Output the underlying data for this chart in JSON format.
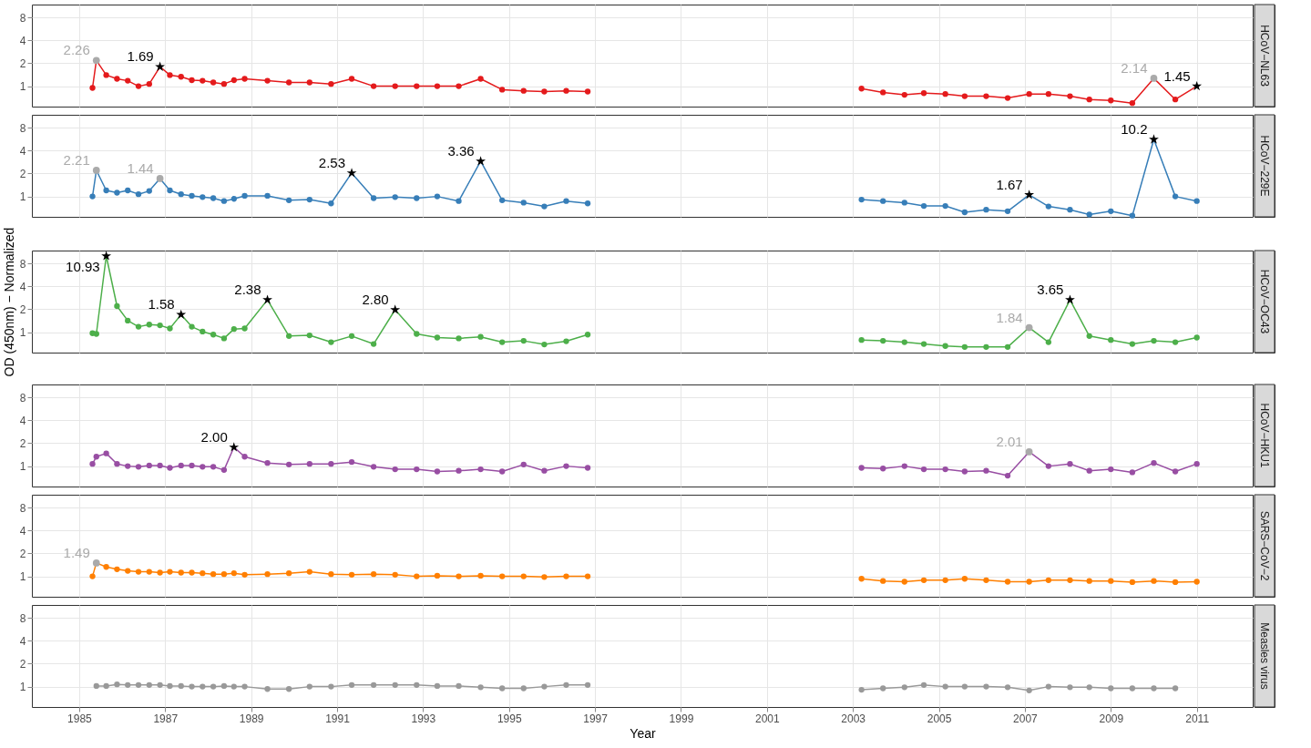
{
  "chart_data": [
    {
      "type": "line",
      "title": "HCoV−NL63",
      "log": "y",
      "grid": true,
      "tick_labels": "y",
      "marker": "circle",
      "line_style": "solid",
      "xlim": [
        1983.9,
        2012.3
      ],
      "xticks": [
        1985,
        1987,
        1989,
        1991,
        1993,
        1995,
        1997,
        1999,
        2001,
        2003,
        2005,
        2007,
        2009,
        2011
      ],
      "ylim": [
        0.54,
        11.8
      ],
      "yticks": [
        1,
        2,
        4,
        8
      ],
      "x": [
        1985.31,
        1985.4,
        1985.63,
        1985.88,
        1986.13,
        1986.38,
        1986.63,
        1986.88,
        1987.11,
        1987.37,
        1987.62,
        1987.87,
        1988.12,
        1988.37,
        1988.6,
        1988.85,
        1989.38,
        1989.88,
        1990.36,
        1990.86,
        1991.34,
        1991.85,
        1992.35,
        1992.85,
        1993.33,
        1993.83,
        1994.34,
        1994.84,
        1995.34,
        1995.82,
        1996.33,
        1996.83,
        2003.2,
        2003.7,
        2004.2,
        2004.65,
        2005.15,
        2005.6,
        2006.1,
        2006.6,
        2007.1,
        2007.55,
        2008.05,
        2008.5,
        2009.0,
        2009.5,
        2010.0,
        2010.5,
        2011.0
      ],
      "series": [
        {
          "color": "#e41a1c",
          "values": [
            0.95,
            2.18,
            1.4,
            1.25,
            1.18,
            1.0,
            1.07,
            1.8,
            1.4,
            1.33,
            1.2,
            1.18,
            1.12,
            1.07,
            1.2,
            1.25,
            1.18,
            1.12,
            1.12,
            1.07,
            1.25,
            1.0,
            1.0,
            1.0,
            1.0,
            1.0,
            1.25,
            0.9,
            0.87,
            0.85,
            0.87,
            0.85,
            0.93,
            0.83,
            0.77,
            0.81,
            0.79,
            0.74,
            0.74,
            0.7,
            0.79,
            0.79,
            0.74,
            0.67,
            0.65,
            0.6,
            1.27,
            0.67,
            1.0
          ]
        },
        {
          "type": "scatter",
          "marker": "circle",
          "color": "#aaaaaa",
          "x": [
            1985.4,
            2010.0
          ],
          "values": [
            2.18,
            1.27
          ]
        },
        {
          "type": "scatter",
          "marker": "star",
          "color": "#000000",
          "x": [
            1986.88,
            2011.0
          ],
          "values": [
            1.8,
            1.0
          ]
        }
      ],
      "annotations": [
        {
          "text": "2.26",
          "x": 1985.4,
          "y": 2.18
        },
        {
          "text": "1.69",
          "x": 1986.88,
          "y": 1.8
        },
        {
          "text": "2.14",
          "x": 2010.0,
          "y": 1.27
        },
        {
          "text": "1.45",
          "x": 2011.0,
          "y": 1.0
        }
      ]
    },
    {
      "type": "line",
      "title": "HCoV−229E",
      "log": "y",
      "grid": true,
      "tick_labels": "y",
      "marker": "circle",
      "line_style": "solid",
      "xlim": [
        1983.9,
        2012.3
      ],
      "xticks": [
        1985,
        1987,
        1989,
        1991,
        1993,
        1995,
        1997,
        1999,
        2001,
        2003,
        2005,
        2007,
        2009,
        2011
      ],
      "ylim": [
        0.54,
        11.8
      ],
      "yticks": [
        1,
        2,
        4,
        8
      ],
      "x": [
        1985.31,
        1985.4,
        1985.63,
        1985.88,
        1986.13,
        1986.38,
        1986.63,
        1986.88,
        1987.11,
        1987.37,
        1987.62,
        1987.87,
        1988.12,
        1988.37,
        1988.6,
        1988.85,
        1989.38,
        1989.88,
        1990.36,
        1990.86,
        1991.34,
        1991.85,
        1992.35,
        1992.85,
        1993.33,
        1993.83,
        1994.34,
        1994.84,
        1995.34,
        1995.82,
        1996.33,
        1996.83,
        2003.2,
        2003.7,
        2004.2,
        2004.65,
        2005.15,
        2005.6,
        2006.1,
        2006.6,
        2007.1,
        2007.55,
        2008.05,
        2008.5,
        2009.0,
        2009.5,
        2010.0,
        2010.5,
        2011.0
      ],
      "series": [
        {
          "color": "#377eb8",
          "values": [
            1.0,
            2.2,
            1.2,
            1.12,
            1.2,
            1.07,
            1.18,
            1.72,
            1.2,
            1.07,
            1.02,
            0.98,
            0.95,
            0.87,
            0.93,
            1.02,
            1.02,
            0.89,
            0.91,
            0.81,
            2.03,
            0.95,
            0.98,
            0.95,
            1.0,
            0.87,
            2.9,
            0.89,
            0.83,
            0.74,
            0.87,
            0.81,
            0.91,
            0.87,
            0.83,
            0.75,
            0.75,
            0.62,
            0.67,
            0.64,
            1.05,
            0.74,
            0.67,
            0.58,
            0.64,
            0.56,
            5.6,
            1.0,
            0.87
          ]
        },
        {
          "type": "scatter",
          "marker": "circle",
          "color": "#aaaaaa",
          "x": [
            1985.4,
            1986.88
          ],
          "values": [
            2.2,
            1.72
          ]
        },
        {
          "type": "scatter",
          "marker": "star",
          "color": "#000000",
          "x": [
            1991.34,
            1994.34,
            2007.1,
            2010.0
          ],
          "values": [
            2.03,
            2.9,
            1.05,
            5.6
          ]
        }
      ],
      "annotations": [
        {
          "text": "2.21",
          "x": 1985.4,
          "y": 2.2
        },
        {
          "text": "1.44",
          "x": 1986.88,
          "y": 1.72
        },
        {
          "text": "2.53",
          "x": 1991.34,
          "y": 2.03
        },
        {
          "text": "3.36",
          "x": 1994.34,
          "y": 2.9
        },
        {
          "text": "1.67",
          "x": 2007.1,
          "y": 1.05
        },
        {
          "text": "10.2",
          "x": 2010.0,
          "y": 5.6
        }
      ]
    },
    {
      "type": "line",
      "title": "HCoV−OC43",
      "ylabel": "OD (450nm) − Normalized",
      "log": "y",
      "grid": true,
      "tick_labels": "y",
      "marker": "circle",
      "line_style": "solid",
      "xlim": [
        1983.9,
        2012.3
      ],
      "xticks": [
        1985,
        1987,
        1989,
        1991,
        1993,
        1995,
        1997,
        1999,
        2001,
        2003,
        2005,
        2007,
        2009,
        2011
      ],
      "ylim": [
        0.54,
        11.8
      ],
      "yticks": [
        1,
        2,
        4,
        8
      ],
      "x": [
        1985.31,
        1985.4,
        1985.63,
        1985.88,
        1986.13,
        1986.38,
        1986.63,
        1986.88,
        1987.11,
        1987.37,
        1987.62,
        1987.87,
        1988.12,
        1988.37,
        1988.6,
        1988.85,
        1989.38,
        1989.88,
        1990.36,
        1990.86,
        1991.34,
        1991.85,
        1992.35,
        1992.85,
        1993.33,
        1993.83,
        1994.34,
        1994.84,
        1995.34,
        1995.82,
        1996.33,
        1996.83,
        2003.2,
        2003.7,
        2004.2,
        2004.65,
        2005.15,
        2005.6,
        2006.1,
        2006.6,
        2007.1,
        2007.55,
        2008.05,
        2008.5,
        2009.0,
        2009.5,
        2010.0,
        2010.5,
        2011.0
      ],
      "series": [
        {
          "color": "#4daf4a",
          "values": [
            0.97,
            0.95,
            10.0,
            2.2,
            1.42,
            1.18,
            1.26,
            1.23,
            1.12,
            1.7,
            1.18,
            1.02,
            0.93,
            0.83,
            1.1,
            1.12,
            2.66,
            0.89,
            0.91,
            0.74,
            0.89,
            0.7,
            1.97,
            0.95,
            0.85,
            0.83,
            0.87,
            0.74,
            0.77,
            0.69,
            0.76,
            0.93,
            0.79,
            0.77,
            0.74,
            0.7,
            0.66,
            0.64,
            0.64,
            0.64,
            1.15,
            0.74,
            2.66,
            0.89,
            0.79,
            0.7,
            0.77,
            0.74,
            0.85
          ]
        },
        {
          "type": "scatter",
          "marker": "circle",
          "color": "#aaaaaa",
          "x": [
            2007.1
          ],
          "values": [
            1.15
          ]
        },
        {
          "type": "scatter",
          "marker": "star",
          "color": "#000000",
          "x": [
            1985.63,
            1987.37,
            1989.38,
            1992.35,
            2008.05
          ],
          "values": [
            10.0,
            1.7,
            2.66,
            1.97,
            2.66
          ]
        }
      ],
      "annotations": [
        {
          "text": "10.93",
          "x": 1985.63,
          "y": 10.0
        },
        {
          "text": "1.58",
          "x": 1987.37,
          "y": 1.7
        },
        {
          "text": "2.38",
          "x": 1989.38,
          "y": 2.66
        },
        {
          "text": "2.80",
          "x": 1992.35,
          "y": 1.97
        },
        {
          "text": "1.84",
          "x": 2007.1,
          "y": 1.15
        },
        {
          "text": "3.65",
          "x": 2008.05,
          "y": 2.66
        }
      ]
    },
    {
      "type": "line",
      "title": "HCoV−HKU1",
      "log": "y",
      "grid": true,
      "tick_labels": "y",
      "marker": "circle",
      "line_style": "solid",
      "xlim": [
        1983.9,
        2012.3
      ],
      "xticks": [
        1985,
        1987,
        1989,
        1991,
        1993,
        1995,
        1997,
        1999,
        2001,
        2003,
        2005,
        2007,
        2009,
        2011
      ],
      "ylim": [
        0.54,
        11.8
      ],
      "yticks": [
        1,
        2,
        4,
        8
      ],
      "x": [
        1985.31,
        1985.4,
        1985.63,
        1985.88,
        1986.13,
        1986.38,
        1986.63,
        1986.88,
        1987.11,
        1987.37,
        1987.62,
        1987.87,
        1988.12,
        1988.37,
        1988.6,
        1988.85,
        1989.38,
        1989.88,
        1990.36,
        1990.86,
        1991.34,
        1991.85,
        1992.35,
        1992.85,
        1993.33,
        1993.83,
        1994.34,
        1994.84,
        1995.34,
        1995.82,
        1996.33,
        1996.83,
        2003.2,
        2003.7,
        2004.2,
        2004.65,
        2005.15,
        2005.6,
        2006.1,
        2006.6,
        2007.1,
        2007.55,
        2008.05,
        2008.5,
        2009.0,
        2009.5,
        2010.0,
        2010.5,
        2011.0
      ],
      "series": [
        {
          "color": "#984ea3",
          "values": [
            1.07,
            1.33,
            1.47,
            1.07,
            1.0,
            0.98,
            1.02,
            1.02,
            0.95,
            1.02,
            1.02,
            0.98,
            0.98,
            0.89,
            1.77,
            1.33,
            1.1,
            1.05,
            1.07,
            1.07,
            1.13,
            0.98,
            0.91,
            0.91,
            0.85,
            0.87,
            0.91,
            0.85,
            1.05,
            0.87,
            1.0,
            0.95,
            0.95,
            0.93,
            1.0,
            0.91,
            0.91,
            0.85,
            0.87,
            0.75,
            1.54,
            1.0,
            1.07,
            0.87,
            0.91,
            0.83,
            1.1,
            0.85,
            1.07
          ]
        },
        {
          "type": "scatter",
          "marker": "circle",
          "color": "#aaaaaa",
          "x": [
            2007.1
          ],
          "values": [
            1.54
          ]
        },
        {
          "type": "scatter",
          "marker": "star",
          "color": "#000000",
          "x": [
            1988.6
          ],
          "values": [
            1.77
          ]
        }
      ],
      "annotations": [
        {
          "text": "2.00",
          "x": 1988.6,
          "y": 1.77
        },
        {
          "text": "2.01",
          "x": 2007.1,
          "y": 1.54
        }
      ]
    },
    {
      "type": "line",
      "title": "SARS−CoV−2",
      "log": "y",
      "grid": true,
      "tick_labels": "y",
      "marker": "circle",
      "line_style": "solid",
      "xlim": [
        1983.9,
        2012.3
      ],
      "xticks": [
        1985,
        1987,
        1989,
        1991,
        1993,
        1995,
        1997,
        1999,
        2001,
        2003,
        2005,
        2007,
        2009,
        2011
      ],
      "ylim": [
        0.54,
        11.8
      ],
      "yticks": [
        1,
        2,
        4,
        8
      ],
      "x": [
        1985.31,
        1985.4,
        1985.63,
        1985.88,
        1986.13,
        1986.38,
        1986.63,
        1986.88,
        1987.11,
        1987.37,
        1987.62,
        1987.87,
        1988.12,
        1988.37,
        1988.6,
        1988.85,
        1989.38,
        1989.88,
        1990.36,
        1990.86,
        1991.34,
        1991.85,
        1992.35,
        1992.85,
        1993.33,
        1993.83,
        1994.34,
        1994.84,
        1995.34,
        1995.82,
        1996.33,
        1996.83,
        2003.2,
        2003.7,
        2004.2,
        2004.65,
        2005.15,
        2005.6,
        2006.1,
        2006.6,
        2007.1,
        2007.55,
        2008.05,
        2008.5,
        2009.0,
        2009.5,
        2010.0,
        2010.5,
        2011.0
      ],
      "series": [
        {
          "color": "#ff7f00",
          "values": [
            1.0,
            1.5,
            1.33,
            1.24,
            1.18,
            1.15,
            1.15,
            1.12,
            1.15,
            1.12,
            1.12,
            1.1,
            1.07,
            1.07,
            1.1,
            1.05,
            1.07,
            1.1,
            1.15,
            1.07,
            1.05,
            1.07,
            1.05,
            1.0,
            1.02,
            1.0,
            1.02,
            1.0,
            1.0,
            0.98,
            1.0,
            1.0,
            0.93,
            0.87,
            0.85,
            0.89,
            0.89,
            0.93,
            0.89,
            0.85,
            0.85,
            0.89,
            0.89,
            0.87,
            0.87,
            0.84,
            0.87,
            0.84,
            0.85
          ]
        },
        {
          "type": "scatter",
          "marker": "circle",
          "color": "#aaaaaa",
          "x": [
            1985.4
          ],
          "values": [
            1.5
          ]
        }
      ],
      "annotations": [
        {
          "text": "1.49",
          "x": 1985.4,
          "y": 1.5
        }
      ]
    },
    {
      "type": "line",
      "title": "Measles virus",
      "xlabel": "Year",
      "log": "y",
      "grid": true,
      "marker": "circle",
      "line_style": "solid",
      "xlim": [
        1983.9,
        2012.3
      ],
      "xticks": [
        1985,
        1987,
        1989,
        1991,
        1993,
        1995,
        1997,
        1999,
        2001,
        2003,
        2005,
        2007,
        2009,
        2011
      ],
      "ylim": [
        0.54,
        11.8
      ],
      "yticks": [
        1,
        2,
        4,
        8
      ],
      "series": [
        {
          "color": "#999999",
          "x": [
            1985.4,
            1985.63,
            1985.88,
            1986.13,
            1986.38,
            1986.63,
            1986.88,
            1987.11,
            1987.37,
            1987.62,
            1987.87,
            1988.12,
            1988.37,
            1988.6,
            1988.85,
            1989.38,
            1989.88,
            1990.36,
            1990.86,
            1991.34,
            1991.85,
            1992.35,
            1992.85,
            1993.33,
            1993.83,
            1994.34,
            1994.84,
            1995.34,
            1995.82,
            1996.33,
            1996.83,
            2003.2,
            2003.7,
            2004.2,
            2004.65,
            2005.15,
            2005.6,
            2006.1,
            2006.6,
            2007.1,
            2007.55,
            2008.05,
            2008.5,
            2009.0,
            2009.5,
            2010.0,
            2010.5
          ],
          "values": [
            1.02,
            1.02,
            1.07,
            1.05,
            1.05,
            1.05,
            1.05,
            1.02,
            1.02,
            1.0,
            1.0,
            1.0,
            1.02,
            1.0,
            1.0,
            0.93,
            0.93,
            1.0,
            1.0,
            1.05,
            1.05,
            1.05,
            1.05,
            1.02,
            1.02,
            0.98,
            0.95,
            0.95,
            1.0,
            1.05,
            1.05,
            0.91,
            0.95,
            0.98,
            1.05,
            1.0,
            1.0,
            1.0,
            0.98,
            0.89,
            1.0,
            0.98,
            0.98,
            0.95,
            0.95,
            0.95,
            0.95
          ]
        }
      ]
    }
  ]
}
